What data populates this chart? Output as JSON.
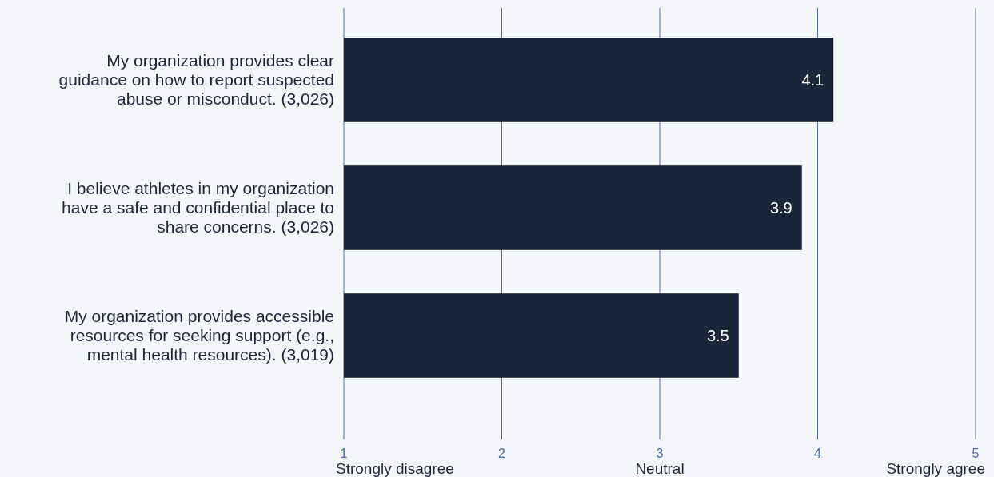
{
  "chart_data": {
    "type": "bar",
    "orientation": "horizontal",
    "categories": [
      "My organization provides clear guidance on how to report suspected abuse or misconduct. (3,026)",
      "I believe athletes in my organization have a safe and confidential place to share concerns. (3,026)",
      "My organization provides accessible resources for seeking support (e.g., mental health resources). (3,019)"
    ],
    "values": [
      4.1,
      3.9,
      3.5
    ],
    "color": "#1c2639",
    "data_labels": true,
    "xlim": [
      1,
      5
    ],
    "xticks": [
      1,
      2,
      3,
      4,
      5
    ],
    "grid": "x",
    "annotations": [
      "Strongly disagree",
      "Neutral",
      "Strongly agree"
    ]
  }
}
